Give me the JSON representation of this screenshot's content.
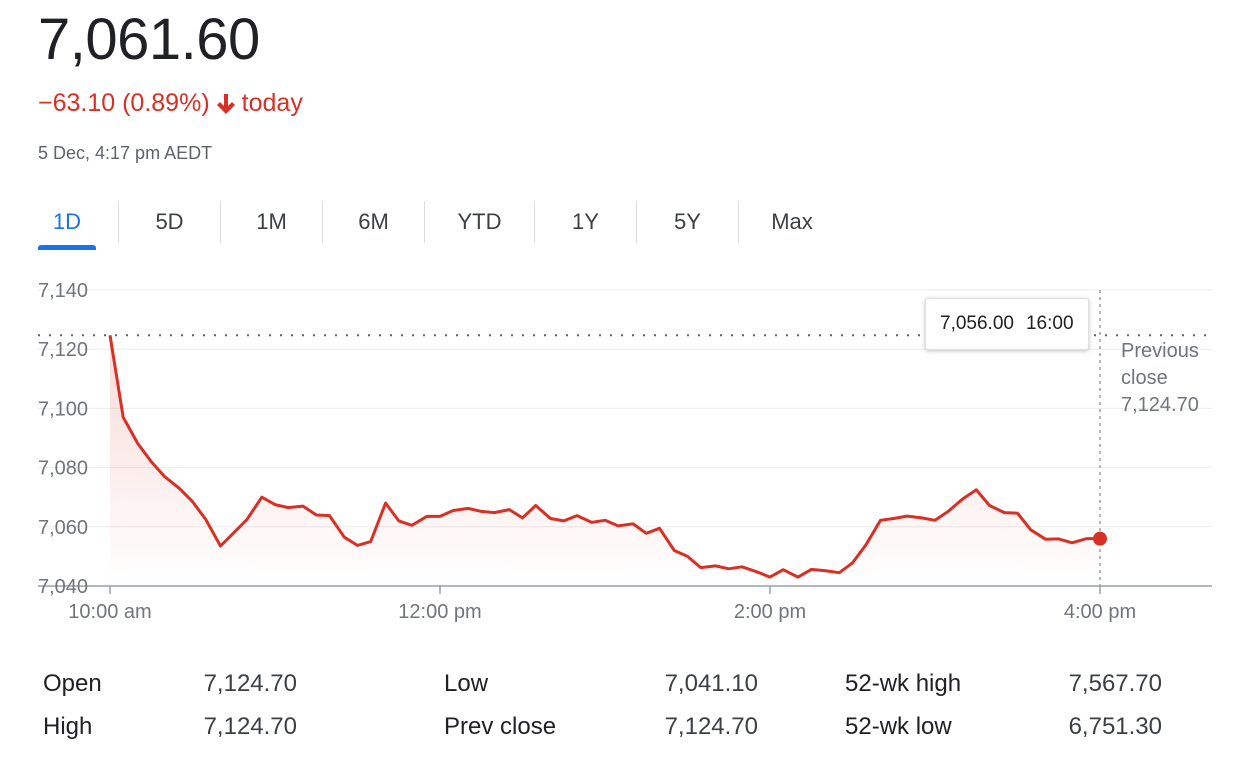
{
  "quote": {
    "price": "7,061.60",
    "change": "−63.10 (0.89%)",
    "change_suffix": "today",
    "timestamp": "5 Dec, 4:17 pm AEDT",
    "color_down": "#d93025"
  },
  "tabs": [
    "1D",
    "5D",
    "1M",
    "6M",
    "YTD",
    "1Y",
    "5Y",
    "Max"
  ],
  "active_tab": "1D",
  "tooltip": {
    "value": "7,056.00",
    "time": "16:00"
  },
  "prev_close_annotation": [
    "Previous",
    "close",
    "7,124.70"
  ],
  "stats": [
    {
      "label": "Open",
      "value": "7,124.70"
    },
    {
      "label": "High",
      "value": "7,124.70"
    },
    {
      "label": "Low",
      "value": "7,041.10"
    },
    {
      "label": "Prev close",
      "value": "7,124.70"
    },
    {
      "label": "52-wk high",
      "value": "7,567.70"
    },
    {
      "label": "52-wk low",
      "value": "6,751.30"
    }
  ],
  "chart_data": {
    "type": "line",
    "title": "",
    "xlabel": "",
    "ylabel": "",
    "ylim": [
      7040,
      7140
    ],
    "yticks": [
      7140,
      7120,
      7100,
      7080,
      7060,
      7040
    ],
    "ytick_labels": [
      "7,140",
      "7,120",
      "7,100",
      "7,080",
      "7,060",
      "7,040"
    ],
    "xlim_hours": [
      10,
      16.66
    ],
    "xticks_hours": [
      10,
      12,
      14,
      16
    ],
    "xtick_labels": [
      "10:00 am",
      "12:00 pm",
      "2:00 pm",
      "4:00 pm"
    ],
    "previous_close": 7124.7,
    "line_color": "#d93025",
    "grid": true,
    "series": [
      {
        "x_hours": [
          10.0,
          10.08,
          10.17,
          10.25,
          10.33,
          10.42,
          10.5,
          10.58,
          10.67,
          10.75,
          10.83,
          10.92,
          11.0,
          11.08,
          11.17,
          11.25,
          11.33,
          11.42,
          11.5,
          11.58,
          11.67,
          11.75,
          11.83,
          11.92,
          12.0,
          12.08,
          12.17,
          12.25,
          12.33,
          12.42,
          12.5,
          12.58,
          12.67,
          12.75,
          12.83,
          12.92,
          13.0,
          13.08,
          13.17,
          13.25,
          13.33,
          13.42,
          13.5,
          13.58,
          13.67,
          13.75,
          13.83,
          13.92,
          14.0,
          14.08,
          14.17,
          14.25,
          14.33,
          14.42,
          14.5,
          14.58,
          14.67,
          14.75,
          14.83,
          14.92,
          15.0,
          15.08,
          15.17,
          15.25,
          15.33,
          15.42,
          15.5,
          15.58,
          15.67,
          15.75,
          15.83,
          15.92,
          16.0
        ],
        "values": [
          7124.7,
          7097.0,
          7088.0,
          7082.0,
          7077.0,
          7073.0,
          7068.5,
          7062.5,
          7053.5,
          7058.0,
          7062.5,
          7070.0,
          7067.5,
          7066.5,
          7067.0,
          7064.0,
          7063.8,
          7056.5,
          7053.7,
          7055.0,
          7068.0,
          7062.0,
          7060.5,
          7063.5,
          7063.5,
          7065.5,
          7066.2,
          7065.2,
          7064.8,
          7065.8,
          7063.0,
          7067.2,
          7062.8,
          7062.0,
          7063.8,
          7061.5,
          7062.2,
          7060.3,
          7061.0,
          7057.8,
          7059.5,
          7052.0,
          7050.0,
          7046.2,
          7046.8,
          7045.8,
          7046.5,
          7044.8,
          7043.0,
          7045.5,
          7043.0,
          7045.6,
          7045.2,
          7044.5,
          7047.8,
          7053.8,
          7062.2,
          7062.8,
          7063.6,
          7063.0,
          7062.2,
          7065.2,
          7069.5,
          7072.5,
          7067.2,
          7064.8,
          7064.6,
          7059.0,
          7055.8,
          7055.9,
          7054.6,
          7056.0,
          7056.0
        ]
      }
    ]
  }
}
